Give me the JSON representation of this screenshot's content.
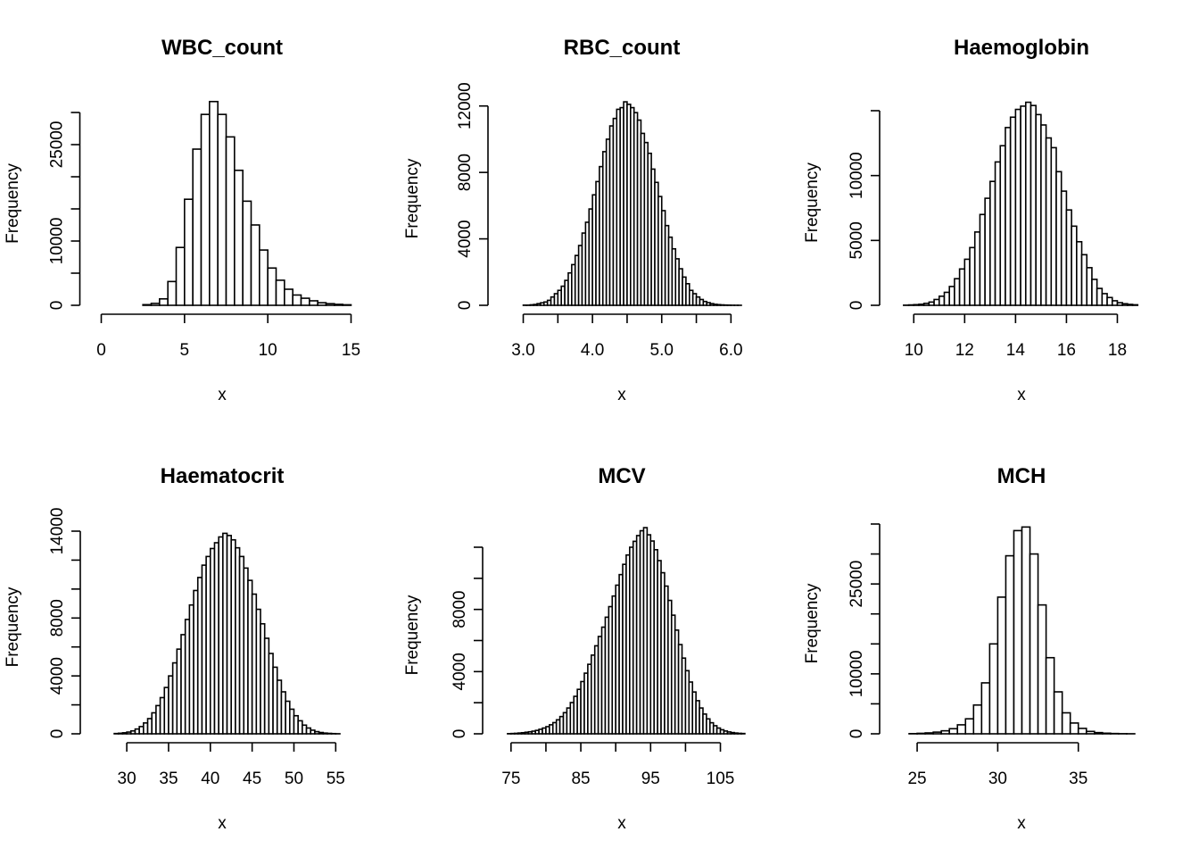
{
  "chart_data": [
    {
      "type": "bar",
      "title": "WBC_count",
      "xlabel": "x",
      "ylabel": "Frequency",
      "xlim": [
        0,
        15
      ],
      "xticks": [
        0,
        5,
        10,
        15
      ],
      "xtick_labels": [
        "0",
        "5",
        "10",
        "15"
      ],
      "ylim": [
        0,
        30000
      ],
      "yticks": [
        0,
        5000,
        10000,
        15000,
        20000,
        25000,
        30000
      ],
      "ytick_labels": [
        "0",
        "",
        "10000",
        "",
        "",
        "25000",
        ""
      ],
      "bin_start": 0,
      "bin_width": 0.5,
      "values": [
        0,
        0,
        0,
        0,
        0,
        100,
        300,
        1000,
        3700,
        9000,
        16500,
        24300,
        29700,
        31700,
        29700,
        26200,
        21000,
        16200,
        12500,
        8600,
        5800,
        3900,
        2500,
        1600,
        1100,
        700,
        400,
        250,
        150,
        80
      ]
    },
    {
      "type": "bar",
      "title": "RBC_count",
      "xlabel": "x",
      "ylabel": "Frequency",
      "xlim": [
        2.8,
        6.15
      ],
      "xticks": [
        3.0,
        3.5,
        4.0,
        4.5,
        5.0,
        5.5,
        6.0
      ],
      "xtick_labels": [
        "3.0",
        "",
        "4.0",
        "",
        "5.0",
        "",
        "6.0"
      ],
      "ylim": [
        0,
        12200
      ],
      "yticks": [
        0,
        4000,
        8000,
        12000
      ],
      "ytick_labels": [
        "0",
        "4000",
        "8000",
        "12000"
      ],
      "bin_start": 2.8,
      "bin_width": 0.05,
      "values": [
        0,
        0,
        0,
        0,
        10,
        10,
        30,
        50,
        100,
        150,
        200,
        300,
        500,
        700,
        900,
        1150,
        1500,
        1950,
        2450,
        3000,
        3600,
        4350,
        5000,
        5800,
        6650,
        7450,
        8350,
        9250,
        10000,
        10800,
        11250,
        11800,
        11900,
        12250,
        12100,
        11900,
        11600,
        11150,
        10350,
        9800,
        9150,
        8200,
        7400,
        6550,
        5700,
        4800,
        4100,
        3400,
        2800,
        2200,
        1700,
        1300,
        900,
        700,
        500,
        350,
        230,
        160,
        100,
        60,
        40,
        25,
        15,
        10,
        5,
        3,
        2
      ]
    },
    {
      "type": "bar",
      "title": "Haemoglobin",
      "xlabel": "x",
      "ylabel": "Frequency",
      "xlim": [
        9.5,
        19
      ],
      "xticks": [
        10,
        12,
        14,
        16,
        18
      ],
      "xtick_labels": [
        "10",
        "12",
        "14",
        "16",
        "18"
      ],
      "ylim": [
        0,
        15000
      ],
      "yticks": [
        0,
        5000,
        10000,
        15000
      ],
      "ytick_labels": [
        "0",
        "5000",
        "10000",
        ""
      ],
      "bin_start": 9.4,
      "bin_width": 0.2,
      "values": [
        0,
        10,
        30,
        50,
        80,
        150,
        250,
        450,
        700,
        1000,
        1450,
        2050,
        2800,
        3550,
        4450,
        5650,
        7000,
        8250,
        9550,
        11050,
        12300,
        13700,
        14500,
        15100,
        15350,
        15650,
        15400,
        14700,
        13900,
        12900,
        12150,
        10300,
        8800,
        7350,
        6100,
        4900,
        3900,
        2900,
        2000,
        1300,
        900,
        600,
        350,
        200,
        120,
        70,
        40
      ]
    },
    {
      "type": "bar",
      "title": "Haematocrit",
      "xlabel": "x",
      "ylabel": "Frequency",
      "xlim": [
        27,
        55.5
      ],
      "xticks": [
        30,
        35,
        40,
        45,
        50,
        55
      ],
      "xtick_labels": [
        "30",
        "35",
        "40",
        "45",
        "50",
        "55"
      ],
      "ylim": [
        0,
        14000
      ],
      "yticks": [
        0,
        2000,
        4000,
        6000,
        8000,
        10000,
        12000,
        14000
      ],
      "ytick_labels": [
        "0",
        "",
        "4000",
        "",
        "8000",
        "",
        "",
        "14000"
      ],
      "bin_start": 28,
      "bin_width": 0.5,
      "values": [
        0,
        20,
        40,
        70,
        120,
        200,
        330,
        500,
        750,
        1050,
        1450,
        1950,
        2500,
        3200,
        4000,
        4900,
        5850,
        6850,
        7900,
        8900,
        9900,
        10800,
        11650,
        12250,
        12800,
        13200,
        13600,
        13850,
        13700,
        13400,
        12850,
        12250,
        11450,
        10600,
        9650,
        8600,
        7600,
        6600,
        5550,
        4600,
        3700,
        2900,
        2250,
        1700,
        1250,
        900,
        600,
        400,
        250,
        150,
        90,
        50,
        30,
        15,
        5
      ]
    },
    {
      "type": "bar",
      "title": "MCV",
      "xlabel": "x",
      "ylabel": "Frequency",
      "xlim": [
        74,
        108
      ],
      "xticks": [
        75,
        80,
        85,
        90,
        95,
        100,
        105
      ],
      "xtick_labels": [
        "75",
        "",
        "85",
        "",
        "95",
        "",
        "105"
      ],
      "ylim": [
        0,
        12000
      ],
      "yticks": [
        0,
        2000,
        4000,
        6000,
        8000,
        10000,
        12000
      ],
      "ytick_labels": [
        "0",
        "",
        "4000",
        "",
        "8000",
        "",
        ""
      ],
      "bin_start": 74.5,
      "bin_width": 0.5,
      "values": [
        10,
        20,
        30,
        50,
        70,
        100,
        130,
        170,
        220,
        290,
        370,
        460,
        580,
        720,
        900,
        1110,
        1360,
        1660,
        2010,
        2410,
        2860,
        3360,
        3900,
        4470,
        5060,
        5660,
        6260,
        6860,
        7500,
        8180,
        8860,
        9560,
        10240,
        10900,
        11500,
        12000,
        12380,
        12750,
        13060,
        13260,
        12800,
        12400,
        11840,
        11140,
        10360,
        9500,
        8580,
        7630,
        6670,
        5740,
        4870,
        4060,
        3330,
        2690,
        2130,
        1660,
        1270,
        960,
        710,
        520,
        370,
        260,
        180,
        120,
        80,
        50,
        30,
        20
      ]
    },
    {
      "type": "bar",
      "title": "MCH",
      "xlabel": "x",
      "ylabel": "Frequency",
      "xlim": [
        24,
        39
      ],
      "xticks": [
        25,
        30,
        35
      ],
      "xtick_labels": [
        "25",
        "30",
        "35"
      ],
      "ylim": [
        0,
        35000
      ],
      "yticks": [
        0,
        5000,
        10000,
        15000,
        20000,
        25000,
        30000,
        35000
      ],
      "ytick_labels": [
        "0",
        "",
        "10000",
        "",
        "",
        "25000",
        "",
        ""
      ],
      "bin_start": 23.5,
      "bin_width": 0.5,
      "values": [
        0,
        0,
        30,
        80,
        150,
        280,
        500,
        850,
        1500,
        2500,
        4800,
        8500,
        15000,
        22800,
        29700,
        33900,
        34500,
        30000,
        21500,
        12700,
        7000,
        3500,
        1800,
        900,
        400,
        200,
        100,
        50,
        20,
        10,
        0
      ]
    }
  ]
}
